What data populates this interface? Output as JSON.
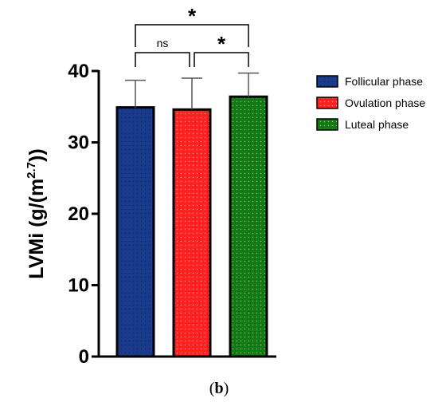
{
  "chart_data": {
    "type": "bar",
    "title": "",
    "xlabel": "",
    "ylabel": "LVMi (g/(m",
    "ylabel_sup": "2.7",
    "ylabel_end": "))",
    "ylim": [
      0,
      40
    ],
    "yticks": [
      "0",
      "10",
      "20",
      "30",
      "40"
    ],
    "grid": false,
    "legend_position": "right",
    "categories": [
      "Follicular phase",
      "Ovulation phase",
      "Luteal phase"
    ],
    "values": [
      34.9,
      34.6,
      36.4
    ],
    "errors": [
      3.8,
      4.4,
      3.3
    ],
    "colors": [
      "#1a3a8c",
      "#ff2020",
      "#137a13"
    ],
    "significance": [
      {
        "from": 0,
        "to": 1,
        "label": "ns",
        "level": 1
      },
      {
        "from": 1,
        "to": 2,
        "label": "*",
        "level": 1
      },
      {
        "from": 0,
        "to": 2,
        "label": "*",
        "level": 2
      }
    ]
  },
  "panel_label": {
    "open": "(",
    "letter": "b",
    "close": ")"
  }
}
